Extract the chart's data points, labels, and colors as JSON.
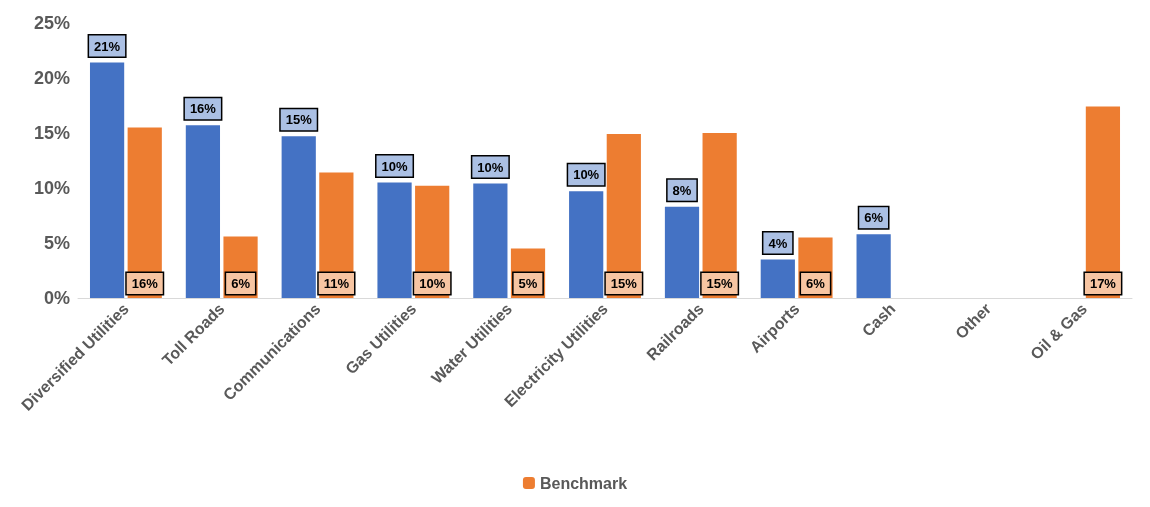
{
  "chart_data": {
    "type": "bar",
    "categories": [
      "Diversified Utilities",
      "Toll Roads",
      "Communications",
      "Gas Utilities",
      "Water Utilities",
      "Electricity Utilities",
      "Railroads",
      "Airports",
      "Cash",
      "Other",
      "Oil & Gas"
    ],
    "series": [
      {
        "color": "#4472c4",
        "values": [
          21.4,
          15.7,
          14.7,
          10.5,
          10.4,
          9.7,
          8.3,
          3.5,
          5.8,
          null,
          null
        ],
        "value_labels": [
          "21%",
          "16%",
          "15%",
          "10%",
          "10%",
          "10%",
          "8%",
          "4%",
          "6%",
          null,
          null
        ]
      },
      {
        "name": "Benchmark",
        "color": "#ed7d31",
        "values": [
          15.5,
          5.6,
          11.4,
          10.2,
          4.5,
          14.9,
          15.0,
          5.5,
          null,
          null,
          17.4
        ],
        "value_labels": [
          "16%",
          "6%",
          "11%",
          "10%",
          "5%",
          "15%",
          "15%",
          "6%",
          null,
          null,
          "17%"
        ]
      }
    ],
    "ylim": [
      0,
      25
    ],
    "yticks": [
      {
        "value": 0,
        "label": "0%"
      },
      {
        "value": 5,
        "label": "5%"
      },
      {
        "value": 10,
        "label": "10%"
      },
      {
        "value": 15,
        "label": "15%"
      },
      {
        "value": 20,
        "label": "20%"
      },
      {
        "value": 25,
        "label": "25%"
      }
    ],
    "grid": false,
    "legend": "bottom"
  }
}
